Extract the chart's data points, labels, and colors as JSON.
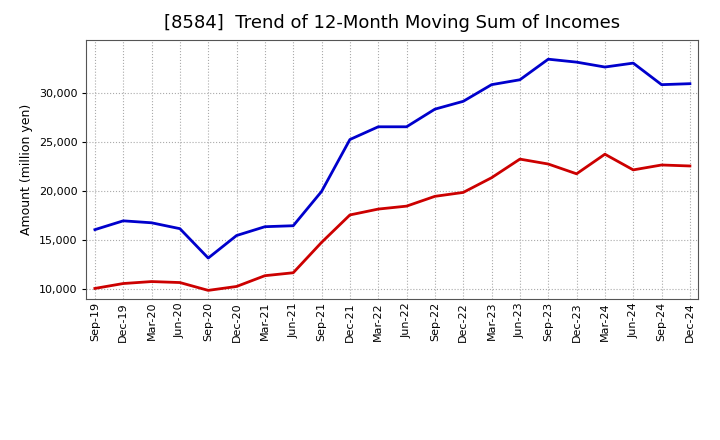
{
  "title": "[8584]  Trend of 12-Month Moving Sum of Incomes",
  "ylabel": "Amount (million yen)",
  "x_labels": [
    "Sep-19",
    "Dec-19",
    "Mar-20",
    "Jun-20",
    "Sep-20",
    "Dec-20",
    "Mar-21",
    "Jun-21",
    "Sep-21",
    "Dec-21",
    "Mar-22",
    "Jun-22",
    "Sep-22",
    "Dec-22",
    "Mar-23",
    "Jun-23",
    "Sep-23",
    "Dec-23",
    "Mar-24",
    "Jun-24",
    "Sep-24",
    "Dec-24"
  ],
  "ordinary_income": [
    16100,
    17000,
    16800,
    16200,
    13200,
    15500,
    16400,
    16500,
    20000,
    25300,
    26600,
    26600,
    28400,
    29200,
    30900,
    31400,
    33500,
    33200,
    32700,
    33100,
    30900,
    31000
  ],
  "net_income": [
    10100,
    10600,
    10800,
    10700,
    9900,
    10300,
    11400,
    11700,
    14800,
    17600,
    18200,
    18500,
    19500,
    19900,
    21400,
    23300,
    22800,
    21800,
    23800,
    22200,
    22700,
    22600
  ],
  "ordinary_color": "#0000cc",
  "net_color": "#cc0000",
  "background_color": "#ffffff",
  "plot_bg_color": "#ffffff",
  "grid_color": "#aaaaaa",
  "spine_color": "#555555",
  "ylim": [
    9000,
    35500
  ],
  "yticks": [
    10000,
    15000,
    20000,
    25000,
    30000
  ],
  "line_width": 2.0,
  "title_fontsize": 13,
  "ylabel_fontsize": 9,
  "tick_fontsize": 8,
  "legend_fontsize": 9
}
